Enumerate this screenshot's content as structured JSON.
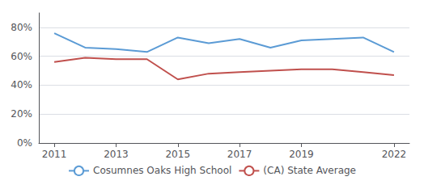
{
  "chart_data": {
    "type": "line",
    "x": [
      2011,
      2012,
      2013,
      2014,
      2015,
      2016,
      2017,
      2018,
      2019,
      2020,
      2021,
      2022
    ],
    "series": [
      {
        "name": "Cosumnes Oaks High School",
        "color": "#5b9bd5",
        "values": [
          0.76,
          0.66,
          0.65,
          0.63,
          0.73,
          0.69,
          0.72,
          0.66,
          0.71,
          0.72,
          0.73,
          0.63
        ]
      },
      {
        "name": "(CA) State Average",
        "color": "#c0504d",
        "values": [
          0.56,
          0.59,
          0.58,
          0.58,
          0.44,
          0.48,
          0.49,
          0.5,
          0.51,
          0.51,
          0.49,
          0.47
        ]
      }
    ],
    "xlim": [
      2010.5,
      2022.5
    ],
    "xticks": [
      2011,
      2013,
      2015,
      2017,
      2019,
      2022
    ],
    "ylim": [
      0,
      0.9
    ],
    "yticks": [
      {
        "value": 0.0,
        "label": "0%"
      },
      {
        "value": 0.2,
        "label": "20%"
      },
      {
        "value": 0.4,
        "label": "40%"
      },
      {
        "value": 0.6,
        "label": "60%"
      },
      {
        "value": 0.8,
        "label": "80%"
      }
    ],
    "grid": true,
    "legend": "bottom"
  }
}
